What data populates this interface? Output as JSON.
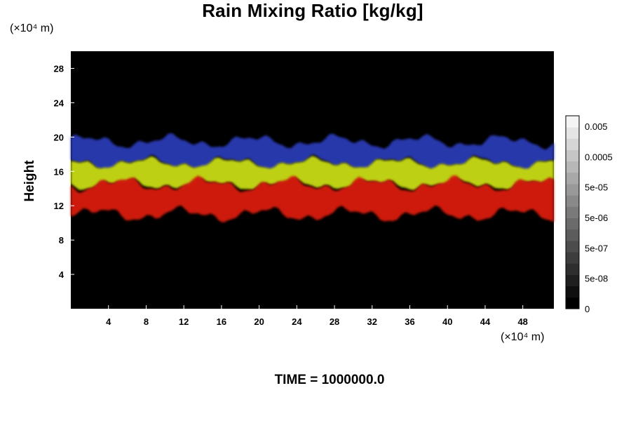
{
  "chart_data": {
    "type": "heatmap",
    "title": "Rain Mixing Ratio [kg/kg]",
    "ylabel": "Height",
    "y_unit_label": "(×10⁴ m)",
    "x_unit_label": "(×10⁴ m)",
    "xlim": [
      0,
      51.3
    ],
    "ylim": [
      0,
      30
    ],
    "x_ticks": [
      "4",
      "8",
      "12",
      "16",
      "20",
      "24",
      "28",
      "32",
      "36",
      "40",
      "44",
      "48"
    ],
    "y_ticks": [
      "4",
      "8",
      "12",
      "16",
      "20",
      "24",
      "28"
    ],
    "colorbar": {
      "labels": [
        "0.005",
        "0.0005",
        "5e-05",
        "5e-06",
        "5e-07",
        "5e-08",
        "0"
      ],
      "levels": 17,
      "min_color": "#000000",
      "max_color": "#f4f4f4"
    },
    "layers": [
      {
        "name": "top",
        "color": "#2a3ab5",
        "y_range": [
          17,
          19.5
        ]
      },
      {
        "name": "upper-middle",
        "color": "#c8dc16",
        "y_range": [
          14.5,
          17
        ]
      },
      {
        "name": "lower-middle",
        "color": "#d81c10",
        "y_range": [
          11,
          14.5
        ]
      }
    ],
    "colors": {
      "background": "#000000",
      "highlight": "#c8cde4"
    }
  },
  "footer": {
    "time_label": "TIME = 1000000.0"
  }
}
